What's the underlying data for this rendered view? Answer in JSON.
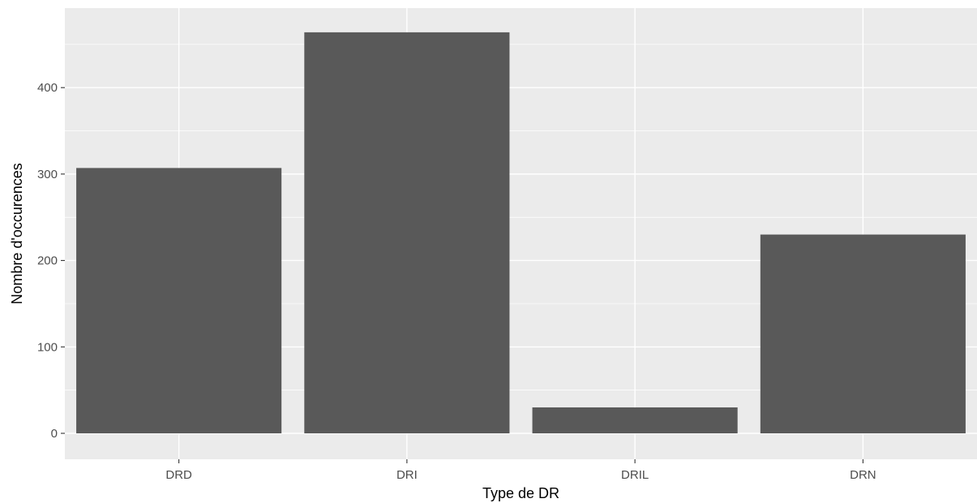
{
  "chart_data": {
    "type": "bar",
    "categories": [
      "DRD",
      "DRI",
      "DRIL",
      "DRN"
    ],
    "values": [
      307,
      464,
      30,
      230
    ],
    "title": "",
    "xlabel": "Type de DR",
    "ylabel": "Nombre d'occurences",
    "ylim": [
      -30,
      492
    ],
    "yticks": [
      0,
      100,
      200,
      300,
      400
    ],
    "ytick_labels": [
      "0",
      "100",
      "200",
      "300",
      "400"
    ],
    "grid": true,
    "legend": "none",
    "colors": {
      "bar": "#595959",
      "panel": "#ebebeb",
      "grid_major": "#ffffff",
      "tick_text": "#4d4d4d",
      "axis_title": "#000000"
    }
  }
}
